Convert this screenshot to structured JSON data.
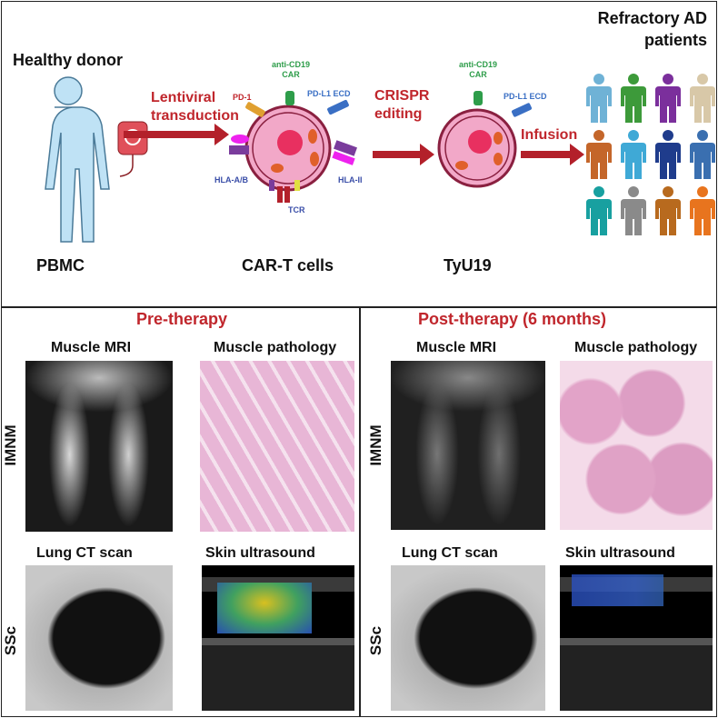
{
  "top": {
    "source_title": "Healthy donor",
    "source_label": "PBMC",
    "step1": "Lentiviral transduction",
    "car_t_label": "CAR-T cells",
    "step2": "CRISPR editing",
    "product_label": "TyU19",
    "step3": "Infusion",
    "target_title": "Refractory AD patients",
    "cell1_markers": {
      "car": "anti-CD19 CAR",
      "pd1": "PD-1",
      "pdl1": "PD-L1 ECD",
      "hla_ab": "HLA-A/B",
      "hla_ii": "HLA-II",
      "tcr": "TCR"
    },
    "cell2_markers": {
      "car": "anti-CD19 CAR",
      "pdl1": "PD-L1 ECD"
    },
    "patient_colors": [
      "#6fb2d6",
      "#3d9a3a",
      "#7b2f9c",
      "#d8c8a8",
      "#c4662a",
      "#3fa9d6",
      "#1f3c8c",
      "#3a6fb0",
      "#18a0a0",
      "#8a8a8a",
      "#b86a1e",
      "#e8741e"
    ]
  },
  "pre": {
    "title": "Pre-therapy",
    "mri": "Muscle MRI",
    "pathology": "Muscle pathology",
    "ct": "Lung CT scan",
    "us": "Skin ultrasound"
  },
  "post": {
    "title": "Post-therapy (6 months)",
    "mri": "Muscle MRI",
    "pathology": "Muscle pathology",
    "ct": "Lung CT scan",
    "us": "Skin ultrasound"
  },
  "rows": {
    "row1": "IMNM",
    "row2": "SSc"
  },
  "colors": {
    "accent_red": "#c0262c",
    "cell_pink": "#f2a8c8"
  }
}
